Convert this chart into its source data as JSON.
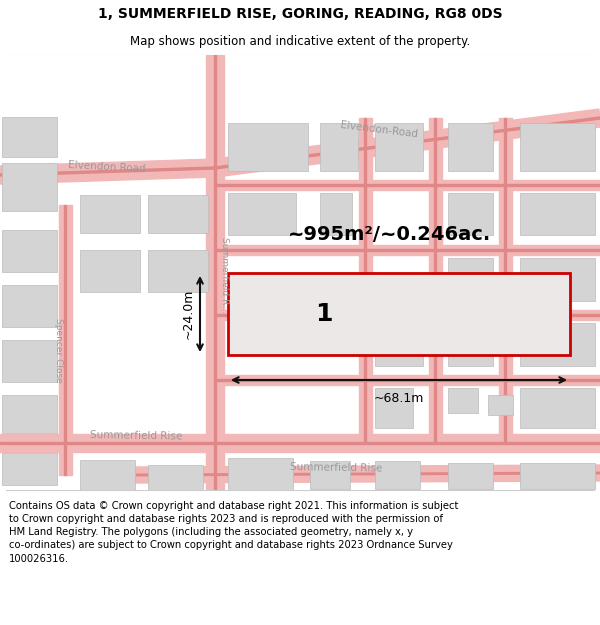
{
  "title": "1, SUMMERFIELD RISE, GORING, READING, RG8 0DS",
  "subtitle": "Map shows position and indicative extent of the property.",
  "footer": "Contains OS data © Crown copyright and database right 2021. This information is subject\nto Crown copyright and database rights 2023 and is reproduced with the permission of\nHM Land Registry. The polygons (including the associated geometry, namely x, y\nco-ordinates) are subject to Crown copyright and database rights 2023 Ordnance Survey\n100026316.",
  "area_label": "~995m²/~0.246ac.",
  "width_label": "~68.1m",
  "height_label": "~24.0m",
  "plot_number": "1",
  "map_bg": "#ffffff",
  "road_color": "#f2b8b8",
  "road_edge_color": "#e08888",
  "building_color": "#d4d4d4",
  "building_edge_color": "#bbbbbb",
  "plot_outline_color": "#cc0000",
  "plot_fill_color": "#ede8e8",
  "road_label_color": "#999999",
  "dim_line_color": "#111111",
  "title_fontsize": 10,
  "subtitle_fontsize": 8.5,
  "footer_fontsize": 7.2
}
